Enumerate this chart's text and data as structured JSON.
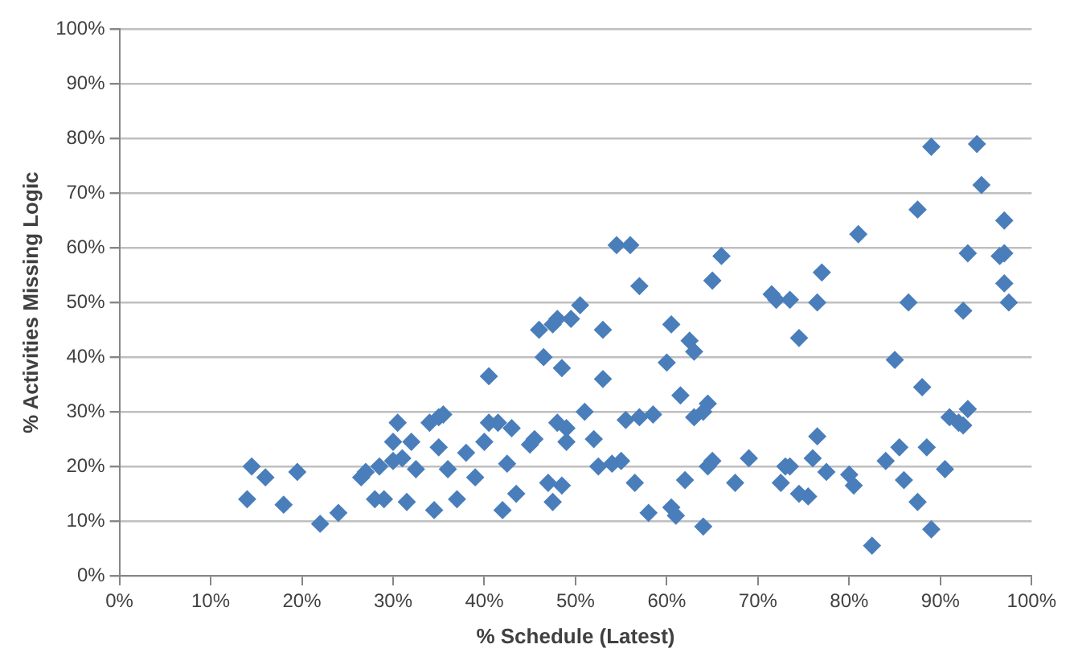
{
  "chart_data": {
    "type": "scatter",
    "xlabel": "% Schedule (Latest)",
    "ylabel": "% Activities Missing Logic",
    "marker": "diamond",
    "grid": "y",
    "legend": false,
    "xlim": [
      0,
      100
    ],
    "ylim": [
      0,
      100
    ],
    "xticks": [
      {
        "value": 0,
        "label": "0%"
      },
      {
        "value": 10,
        "label": "10%"
      },
      {
        "value": 20,
        "label": "20%"
      },
      {
        "value": 30,
        "label": "30%"
      },
      {
        "value": 40,
        "label": "40%"
      },
      {
        "value": 50,
        "label": "50%"
      },
      {
        "value": 60,
        "label": "60%"
      },
      {
        "value": 70,
        "label": "70%"
      },
      {
        "value": 80,
        "label": "80%"
      },
      {
        "value": 90,
        "label": "90%"
      },
      {
        "value": 100,
        "label": "100%"
      }
    ],
    "yticks": [
      {
        "value": 0,
        "label": "0%"
      },
      {
        "value": 10,
        "label": "10%"
      },
      {
        "value": 20,
        "label": "20%"
      },
      {
        "value": 30,
        "label": "30%"
      },
      {
        "value": 40,
        "label": "40%"
      },
      {
        "value": 50,
        "label": "50%"
      },
      {
        "value": 60,
        "label": "60%"
      },
      {
        "value": 70,
        "label": "70%"
      },
      {
        "value": 80,
        "label": "80%"
      },
      {
        "value": 90,
        "label": "90%"
      },
      {
        "value": 100,
        "label": "100%"
      }
    ],
    "series": [
      {
        "color": "#4a7ebb",
        "x": [
          14,
          14.5,
          16,
          18,
          19.5,
          22,
          24,
          26.5,
          27,
          28,
          28.5,
          29,
          30,
          30,
          30.5,
          31,
          31.5,
          32,
          32.5,
          34,
          34.5,
          35,
          35,
          35.5,
          36,
          37,
          38,
          39,
          40,
          40.5,
          40.5,
          41.5,
          42,
          42.5,
          43,
          43.5,
          45,
          45.5,
          46,
          46.5,
          47,
          47.5,
          47.5,
          48,
          48,
          48.5,
          48.5,
          49,
          49,
          49.5,
          50.5,
          51,
          52,
          52.5,
          53,
          53,
          54,
          54.5,
          55,
          55.5,
          56,
          56.5,
          57,
          57,
          58,
          58.5,
          60,
          60.5,
          60.5,
          61,
          61.5,
          62,
          62.5,
          63,
          63,
          64,
          64,
          64.5,
          64.5,
          65,
          65,
          66,
          67.5,
          69,
          71.5,
          72,
          72.5,
          73,
          73.5,
          73.5,
          74.5,
          74.5,
          75.5,
          76,
          76.5,
          76.5,
          77,
          77.5,
          80,
          80.5,
          81,
          82.5,
          84,
          85,
          85.5,
          86,
          86.5,
          87.5,
          87.5,
          88,
          88.5,
          89,
          89,
          90.5,
          91,
          92,
          92.5,
          92.5,
          93,
          93,
          94,
          94.5,
          96.5,
          97,
          97,
          97,
          97.5
        ],
        "values": [
          14,
          20,
          18,
          13,
          19,
          9.5,
          11.5,
          18,
          19,
          14,
          20,
          14,
          21,
          24.5,
          28,
          21.5,
          13.5,
          24.5,
          19.5,
          28,
          12,
          23.5,
          29,
          29.5,
          19.5,
          14,
          22.5,
          18,
          24.5,
          36.5,
          28,
          28,
          12,
          20.5,
          27,
          15,
          24,
          25,
          45,
          40,
          17,
          46,
          13.5,
          47,
          28,
          16.5,
          38,
          27,
          24.5,
          47,
          49.5,
          30,
          25,
          20,
          45,
          36,
          20.5,
          60.5,
          21,
          28.5,
          60.5,
          17,
          53,
          29,
          11.5,
          29.5,
          39,
          46,
          12.5,
          11,
          33,
          17.5,
          43,
          41,
          29,
          9,
          30,
          20,
          31.5,
          21,
          54,
          58.5,
          17,
          21.5,
          51.5,
          50.5,
          17,
          20,
          20,
          50.5,
          43.5,
          15,
          14.5,
          21.5,
          50,
          25.5,
          55.5,
          19,
          18.5,
          16.5,
          62.5,
          5.5,
          21,
          39.5,
          23.5,
          17.5,
          50,
          67,
          13.5,
          34.5,
          23.5,
          8.5,
          78.5,
          19.5,
          29,
          28,
          48.5,
          27.5,
          59,
          30.5,
          79,
          71.5,
          58.5,
          65,
          59,
          53.5,
          50
        ]
      }
    ]
  }
}
